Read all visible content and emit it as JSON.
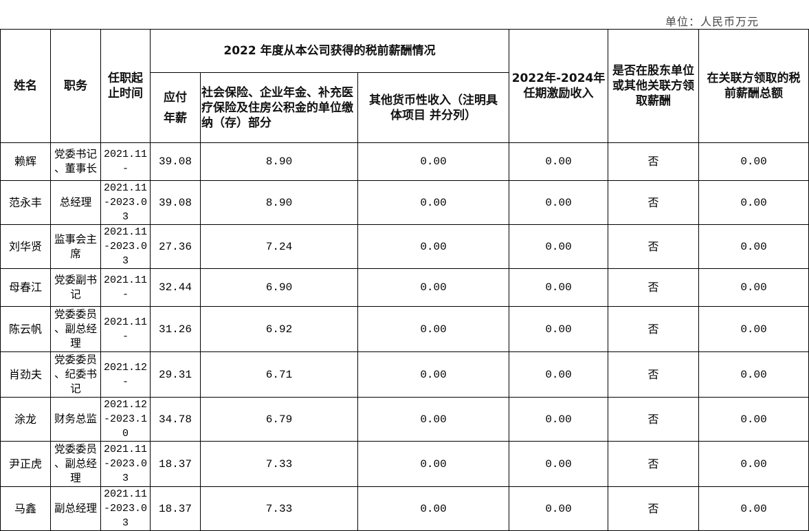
{
  "unit_label": "单位：人民币万元",
  "headers": {
    "name": "姓名",
    "position": "职务",
    "term": "任职起止时间",
    "group": "2022 年度从本公司获得的税前薪酬情况",
    "salary": "应付年薪",
    "social": "社会保险、企业年金、补充医疗保险及住房公积金的单位缴纳（存）部分",
    "other": "其他货币性收入（注明具体项目 并分列）",
    "incentive": "2022年-2024年任期激励收入",
    "related": "是否在股东单位或其他关联方领取薪酬",
    "related_total": "在关联方领取的税前薪酬总额"
  },
  "rows": [
    {
      "name": "赖辉",
      "position": "党委书记、董事长",
      "term": "2021.11-",
      "salary": "39.08",
      "social": "8.90",
      "other": "0.00",
      "incentive": "0.00",
      "related": "否",
      "related_total": "0.00"
    },
    {
      "name": "范永丰",
      "position": "总经理",
      "term": "2021.11-2023.03",
      "salary": "39.08",
      "social": "8.90",
      "other": "0.00",
      "incentive": "0.00",
      "related": "否",
      "related_total": "0.00"
    },
    {
      "name": "刘华贤",
      "position": "监事会主席",
      "term": "2021.11-2023.03",
      "salary": "27.36",
      "social": "7.24",
      "other": "0.00",
      "incentive": "0.00",
      "related": "否",
      "related_total": "0.00"
    },
    {
      "name": "母春江",
      "position": "党委副书记",
      "term": "2021.11-",
      "salary": "32.44",
      "social": "6.90",
      "other": "0.00",
      "incentive": "0.00",
      "related": "否",
      "related_total": "0.00"
    },
    {
      "name": "陈云帆",
      "position": "党委委员、副总经理",
      "term": "2021.11-",
      "salary": "31.26",
      "social": "6.92",
      "other": "0.00",
      "incentive": "0.00",
      "related": "否",
      "related_total": "0.00"
    },
    {
      "name": "肖劲夫",
      "position": "党委委员、纪委书记",
      "term": "2021.12-",
      "salary": "29.31",
      "social": "6.71",
      "other": "0.00",
      "incentive": "0.00",
      "related": "否",
      "related_total": "0.00"
    },
    {
      "name": "涂龙",
      "position": "财务总监",
      "term": "2021.12-2023.10",
      "salary": "34.78",
      "social": "6.79",
      "other": "0.00",
      "incentive": "0.00",
      "related": "否",
      "related_total": "0.00"
    },
    {
      "name": "尹正虎",
      "position": "党委委员、副总经理",
      "term": "2021.11-2023.03",
      "salary": "18.37",
      "social": "7.33",
      "other": "0.00",
      "incentive": "0.00",
      "related": "否",
      "related_total": "0.00"
    },
    {
      "name": "马鑫",
      "position": "副总经理",
      "term": "2021.11-2023.03",
      "salary": "18.37",
      "social": "7.33",
      "other": "0.00",
      "incentive": "0.00",
      "related": "否",
      "related_total": "0.00"
    }
  ]
}
